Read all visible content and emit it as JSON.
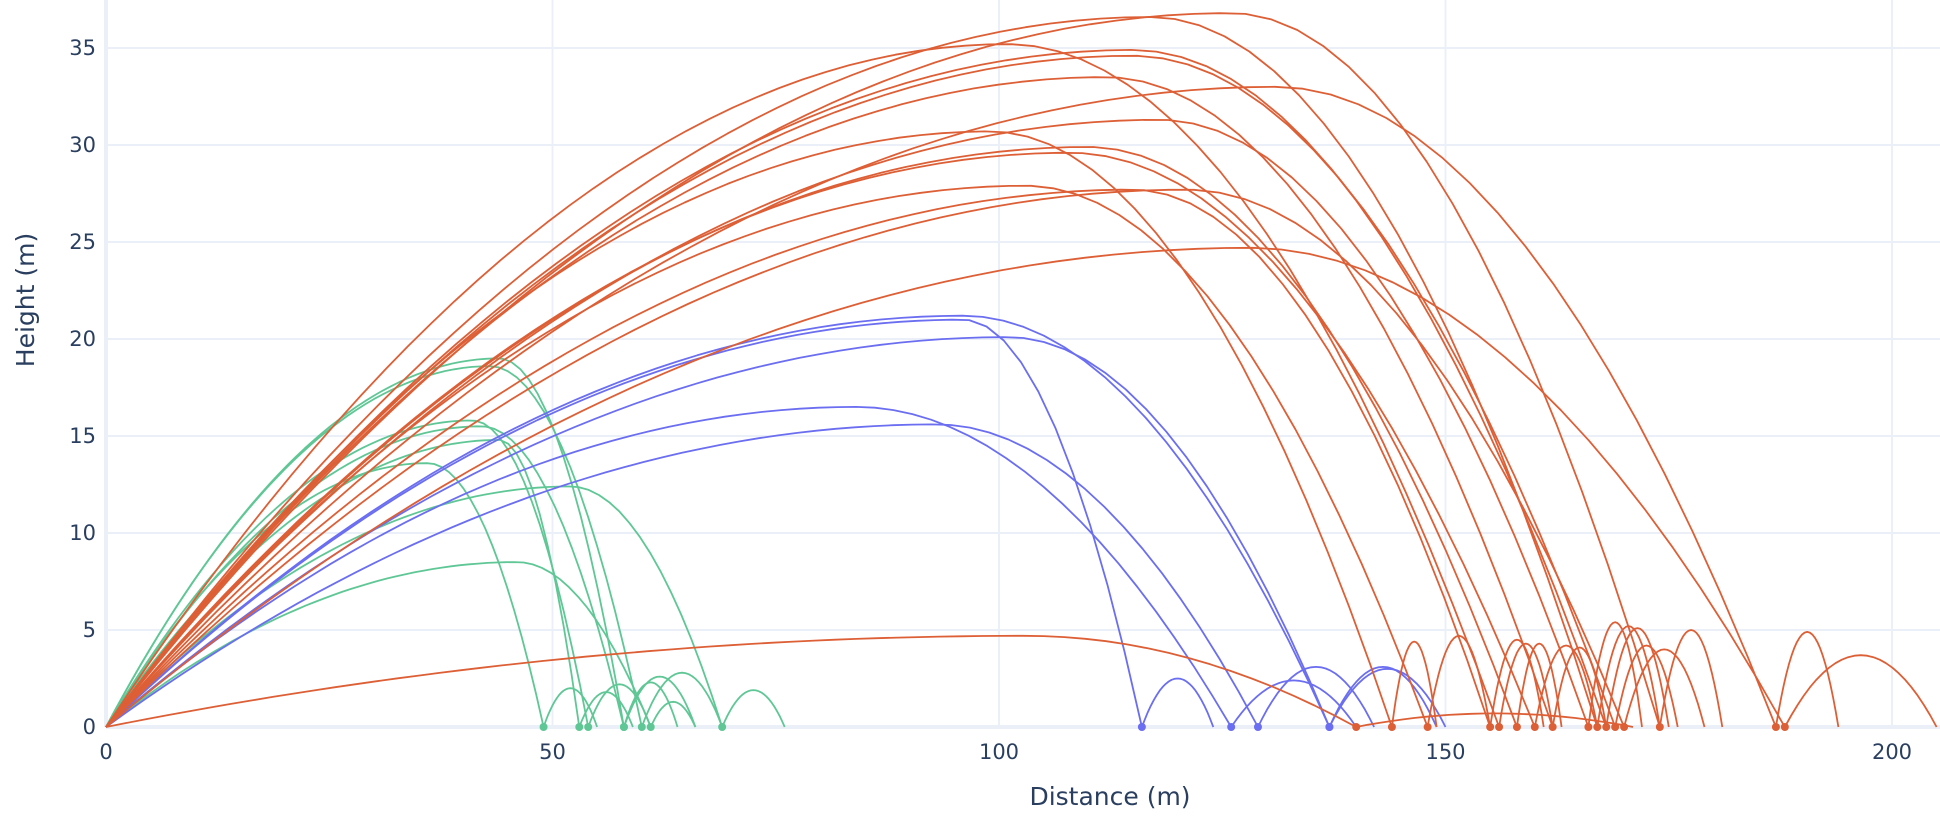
{
  "chart_data": {
    "type": "line",
    "title": "",
    "xlabel": "Distance (m)",
    "ylabel": "Height (m)",
    "xlim": [
      0,
      205
    ],
    "ylim": [
      0,
      37
    ],
    "x_ticks": [
      0,
      50,
      100,
      150,
      200
    ],
    "y_ticks": [
      0,
      5,
      10,
      15,
      20,
      25,
      30,
      35
    ],
    "grid": true,
    "legend": "none",
    "colors": {
      "green": "#5fc795",
      "blue": "#6b6ef0",
      "orange": "#dd5f36"
    },
    "series_note": "Each trajectory: launched from (0,0); apex_x, apex_y = peak; land_x = first landing (marker); bounce = [end_x, bounce_height].",
    "series": [
      {
        "group": "green",
        "apex_x": 44,
        "apex_y": 19.0,
        "land_x": 58,
        "bounce": [
          66,
          2.6
        ]
      },
      {
        "group": "green",
        "apex_x": 43,
        "apex_y": 18.6,
        "land_x": 60,
        "bounce": [
          69,
          2.8
        ]
      },
      {
        "group": "green",
        "apex_x": 41,
        "apex_y": 15.8,
        "land_x": 54,
        "bounce": [
          61,
          2.2
        ]
      },
      {
        "group": "green",
        "apex_x": 42,
        "apex_y": 15.5,
        "land_x": 58,
        "bounce": [
          64,
          2.3
        ]
      },
      {
        "group": "green",
        "apex_x": 36,
        "apex_y": 13.6,
        "land_x": 49,
        "bounce": [
          55,
          2.0
        ]
      },
      {
        "group": "green",
        "apex_x": 52,
        "apex_y": 12.4,
        "land_x": 69,
        "bounce": [
          76,
          1.9
        ]
      },
      {
        "group": "green",
        "apex_x": 46,
        "apex_y": 8.5,
        "land_x": 61,
        "bounce": [
          66,
          1.3
        ]
      },
      {
        "group": "green",
        "apex_x": 44,
        "apex_y": 14.8,
        "land_x": 53,
        "bounce": [
          59,
          1.8
        ]
      },
      {
        "group": "blue",
        "apex_x": 96,
        "apex_y": 21.2,
        "land_x": 137,
        "bounce": [
          149,
          3.1
        ]
      },
      {
        "group": "blue",
        "apex_x": 101,
        "apex_y": 20.1,
        "land_x": 137,
        "bounce": [
          150,
          3.0
        ]
      },
      {
        "group": "blue",
        "apex_x": 84,
        "apex_y": 16.5,
        "land_x": 126,
        "bounce": [
          140,
          2.4
        ]
      },
      {
        "group": "blue",
        "apex_x": 93,
        "apex_y": 15.6,
        "land_x": 129,
        "bounce": [
          142,
          3.1
        ]
      },
      {
        "group": "blue",
        "apex_x": 96,
        "apex_y": 21.0,
        "land_x": 116,
        "bounce": [
          124,
          2.5
        ]
      },
      {
        "group": "orange",
        "apex_x": 126,
        "apex_y": 36.8,
        "land_x": 174,
        "bounce": [
          181,
          5.0
        ]
      },
      {
        "group": "orange",
        "apex_x": 117,
        "apex_y": 36.6,
        "land_x": 167,
        "bounce": [
          174,
          5.2
        ]
      },
      {
        "group": "orange",
        "apex_x": 101,
        "apex_y": 35.2,
        "land_x": 156,
        "bounce": [
          162,
          4.3
        ]
      },
      {
        "group": "orange",
        "apex_x": 115,
        "apex_y": 34.9,
        "land_x": 168,
        "bounce": [
          175,
          5.1
        ]
      },
      {
        "group": "orange",
        "apex_x": 115,
        "apex_y": 34.6,
        "land_x": 169,
        "bounce": [
          176,
          4.2
        ]
      },
      {
        "group": "orange",
        "apex_x": 112,
        "apex_y": 33.5,
        "land_x": 162,
        "bounce": [
          168,
          4.1
        ]
      },
      {
        "group": "orange",
        "apex_x": 131,
        "apex_y": 33.0,
        "land_x": 187,
        "bounce": [
          194,
          4.9
        ]
      },
      {
        "group": "orange",
        "apex_x": 99,
        "apex_y": 30.7,
        "land_x": 144,
        "bounce": [
          149,
          4.4
        ]
      },
      {
        "group": "orange",
        "apex_x": 118,
        "apex_y": 31.3,
        "land_x": 166,
        "bounce": [
          172,
          5.4
        ]
      },
      {
        "group": "orange",
        "apex_x": 110,
        "apex_y": 29.9,
        "land_x": 158,
        "bounce": [
          163,
          4.3
        ]
      },
      {
        "group": "orange",
        "apex_x": 108,
        "apex_y": 29.6,
        "land_x": 160,
        "bounce": [
          167,
          4.2
        ]
      },
      {
        "group": "orange",
        "apex_x": 103,
        "apex_y": 27.9,
        "land_x": 148,
        "bounce": [
          155,
          4.7
        ]
      },
      {
        "group": "orange",
        "apex_x": 121,
        "apex_y": 27.7,
        "land_x": 170,
        "bounce": [
          179,
          4.0
        ]
      },
      {
        "group": "orange",
        "apex_x": 128,
        "apex_y": 24.7,
        "land_x": 188,
        "bounce": [
          205,
          3.7
        ]
      },
      {
        "group": "orange",
        "apex_x": 115,
        "apex_y": 27.7,
        "land_x": 155,
        "bounce": [
          161,
          4.5
        ]
      },
      {
        "group": "orange",
        "apex_x": 103,
        "apex_y": 4.7,
        "land_x": 140,
        "bounce": [
          171,
          0.7
        ]
      }
    ]
  },
  "axes": {
    "x_title": "Distance (m)",
    "y_title": "Height (m)",
    "x_tick_labels": [
      "0",
      "50",
      "100",
      "150",
      "200"
    ],
    "y_tick_labels": [
      "0",
      "5",
      "10",
      "15",
      "20",
      "25",
      "30",
      "35"
    ]
  }
}
